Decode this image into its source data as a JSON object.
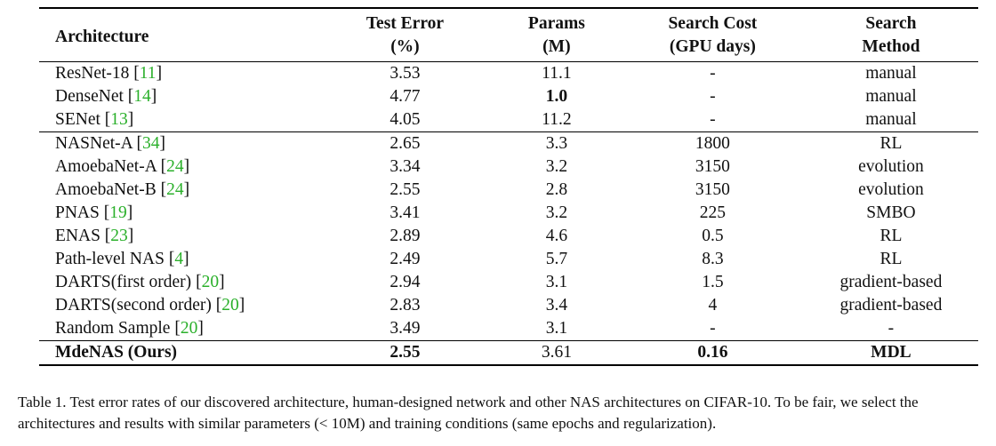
{
  "table": {
    "header": {
      "architecture": "Architecture",
      "test_error": [
        "Test Error",
        "(%)"
      ],
      "params": [
        "Params",
        "(M)"
      ],
      "search_cost": [
        "Search Cost",
        "(GPU days)"
      ],
      "search_method": [
        "Search",
        "Method"
      ]
    },
    "groups": [
      [
        {
          "name": "ResNet-18",
          "cite": "11",
          "error": "3.53",
          "params": "11.1",
          "cost": "-",
          "method": "manual",
          "bold_params": false
        },
        {
          "name": "DenseNet",
          "cite": "14",
          "error": "4.77",
          "params": "1.0",
          "cost": "-",
          "method": "manual",
          "bold_params": true
        },
        {
          "name": "SENet",
          "cite": "13",
          "error": "4.05",
          "params": "11.2",
          "cost": "-",
          "method": "manual",
          "bold_params": false
        }
      ],
      [
        {
          "name": "NASNet-A",
          "cite": "34",
          "error": "2.65",
          "params": "3.3",
          "cost": "1800",
          "method": "RL"
        },
        {
          "name": "AmoebaNet-A",
          "cite": "24",
          "error": "3.34",
          "params": "3.2",
          "cost": "3150",
          "method": "evolution"
        },
        {
          "name": "AmoebaNet-B",
          "cite": "24",
          "error": "2.55",
          "params": "2.8",
          "cost": "3150",
          "method": "evolution"
        },
        {
          "name": "PNAS",
          "cite": "19",
          "error": "3.41",
          "params": "3.2",
          "cost": "225",
          "method": "SMBO"
        },
        {
          "name": "ENAS",
          "cite": "23",
          "error": "2.89",
          "params": "4.6",
          "cost": "0.5",
          "method": "RL"
        },
        {
          "name": "Path-level NAS",
          "cite": "4",
          "error": "2.49",
          "params": "5.7",
          "cost": "8.3",
          "method": "RL"
        },
        {
          "name": "DARTS(first order)",
          "cite": "20",
          "error": "2.94",
          "params": "3.1",
          "cost": "1.5",
          "method": "gradient-based"
        },
        {
          "name": "DARTS(second order)",
          "cite": "20",
          "error": "2.83",
          "params": "3.4",
          "cost": "4",
          "method": "gradient-based"
        },
        {
          "name": "Random Sample",
          "cite": "20",
          "error": "3.49",
          "params": "3.1",
          "cost": "-",
          "method": "-"
        }
      ]
    ],
    "ours": {
      "name": "MdeNAS (Ours)",
      "error": "2.55",
      "params": "3.61",
      "cost": "0.16",
      "method": "MDL"
    }
  },
  "caption": "Table 1. Test error rates of our discovered architecture, human-designed network and other NAS architectures on CIFAR-10. To be fair, we select the architectures and results with similar parameters (< 10M) and training conditions (same epochs and regularization)."
}
